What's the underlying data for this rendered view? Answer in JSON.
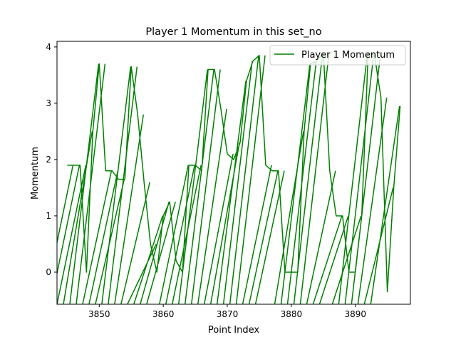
{
  "chart_data": {
    "type": "line",
    "title": "Player 1 Momentum in this set_no",
    "xlabel": "Point Index",
    "ylabel": "Momentum",
    "xlim": [
      3843.4,
      3898.6
    ],
    "ylim": [
      -0.57,
      4.1
    ],
    "xticks": [
      3850,
      3860,
      3870,
      3880,
      3890
    ],
    "yticks": [
      0,
      1,
      2,
      3,
      4
    ],
    "grid": false,
    "legend_position": "upper right",
    "colors": {
      "series": "#008000",
      "axes": "#000000",
      "legend_border": "#cccccc"
    },
    "series": [
      {
        "name": "Player 1 Momentum",
        "x": [
          3845,
          3846,
          3847,
          3848,
          3849,
          3850,
          3851,
          3852,
          3853,
          3854,
          3855,
          3856,
          3857,
          3858,
          3859,
          3860,
          3861,
          3862,
          3863,
          3864,
          3865,
          3866,
          3867,
          3868,
          3869,
          3870,
          3871,
          3872,
          3873,
          3874,
          3875,
          3876,
          3877,
          3878,
          3879,
          3880,
          3881,
          3882,
          3883,
          3884,
          3885,
          3886,
          3887,
          3888,
          3889,
          3890,
          3891,
          3892,
          3893,
          3894,
          3895,
          3896,
          3897
        ],
        "y": [
          1.9,
          1.9,
          1.9,
          0.0,
          2.5,
          3.7,
          1.8,
          1.8,
          1.65,
          1.65,
          3.65,
          2.8,
          1.6,
          0.5,
          0.0,
          1.0,
          1.25,
          0.2,
          0.0,
          1.9,
          1.9,
          1.8,
          3.6,
          3.6,
          2.9,
          2.1,
          2.0,
          2.3,
          3.4,
          3.75,
          3.85,
          1.9,
          1.8,
          1.8,
          0.0,
          0.0,
          0.0,
          2.5,
          3.7,
          3.75,
          3.9,
          1.8,
          1.0,
          1.0,
          0.0,
          0.0,
          1.0,
          3.9,
          3.85,
          3.1,
          -0.35,
          1.5,
          2.95
        ]
      }
    ]
  }
}
